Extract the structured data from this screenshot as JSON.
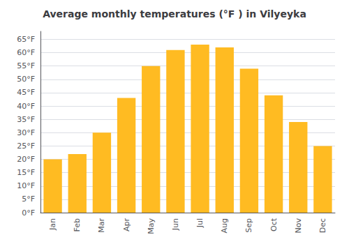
{
  "chart_data": {
    "type": "bar",
    "title": "Average monthly temperatures (°F ) in Vilyeyka",
    "categories": [
      "Jan",
      "Feb",
      "Mar",
      "Apr",
      "May",
      "Jun",
      "Jul",
      "Aug",
      "Sep",
      "Oct",
      "Nov",
      "Dec"
    ],
    "values": [
      20,
      22,
      30,
      43,
      55,
      61,
      63,
      62,
      54,
      44,
      34,
      25
    ],
    "color": "#FFBB22",
    "ylim": [
      0,
      68
    ],
    "yticks": [
      {
        "value": 0,
        "label": "0°F"
      },
      {
        "value": 5,
        "label": "5°F"
      },
      {
        "value": 10,
        "label": "10°F"
      },
      {
        "value": 15,
        "label": "15°F"
      },
      {
        "value": 20,
        "label": "20°F"
      },
      {
        "value": 25,
        "label": "25°F"
      },
      {
        "value": 30,
        "label": "30°F"
      },
      {
        "value": 35,
        "label": "35°F"
      },
      {
        "value": 40,
        "label": "40°F"
      },
      {
        "value": 45,
        "label": "45°F"
      },
      {
        "value": 50,
        "label": "50°F"
      },
      {
        "value": 55,
        "label": "55°F"
      },
      {
        "value": 60,
        "label": "60°F"
      },
      {
        "value": 65,
        "label": "65°F"
      }
    ],
    "grid": true
  }
}
